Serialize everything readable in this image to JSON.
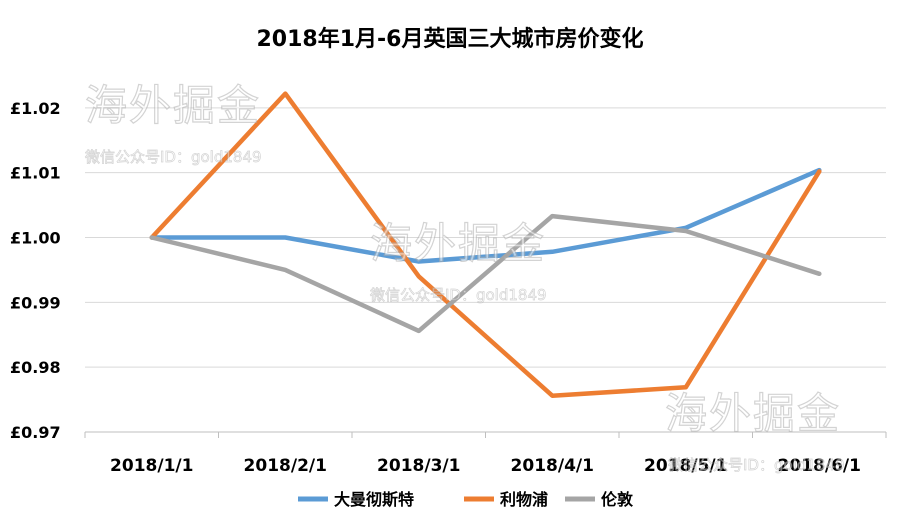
{
  "chart_data": {
    "type": "line",
    "title": "2018年1月-6月英国三大城市房价变化",
    "categories": [
      "2018/1/1",
      "2018/2/1",
      "2018/3/1",
      "2018/4/1",
      "2018/5/1",
      "2018/6/1"
    ],
    "y_tick_labels": [
      "£0.97",
      "£0.98",
      "£0.99",
      "£1.00",
      "£1.01",
      "£1.02"
    ],
    "ylim": [
      0.97,
      1.03
    ],
    "grid": true,
    "legend_position": "bottom",
    "series": [
      {
        "name": "大曼彻斯特",
        "color": "#5B9BD5",
        "values": [
          1.0,
          1.0,
          0.9963,
          0.9978,
          1.0015,
          1.0104
        ]
      },
      {
        "name": "利物浦",
        "color": "#ED7D31",
        "values": [
          1.0,
          1.0222,
          0.994,
          0.9756,
          0.9769,
          1.0102
        ]
      },
      {
        "name": "伦敦",
        "color": "#A5A5A5",
        "values": [
          1.0,
          0.995,
          0.9856,
          1.0033,
          1.001,
          0.9944
        ]
      }
    ]
  },
  "watermark": {
    "logo_text": "海外掘金",
    "wechat_text": "微信公众号ID：gold1849"
  }
}
